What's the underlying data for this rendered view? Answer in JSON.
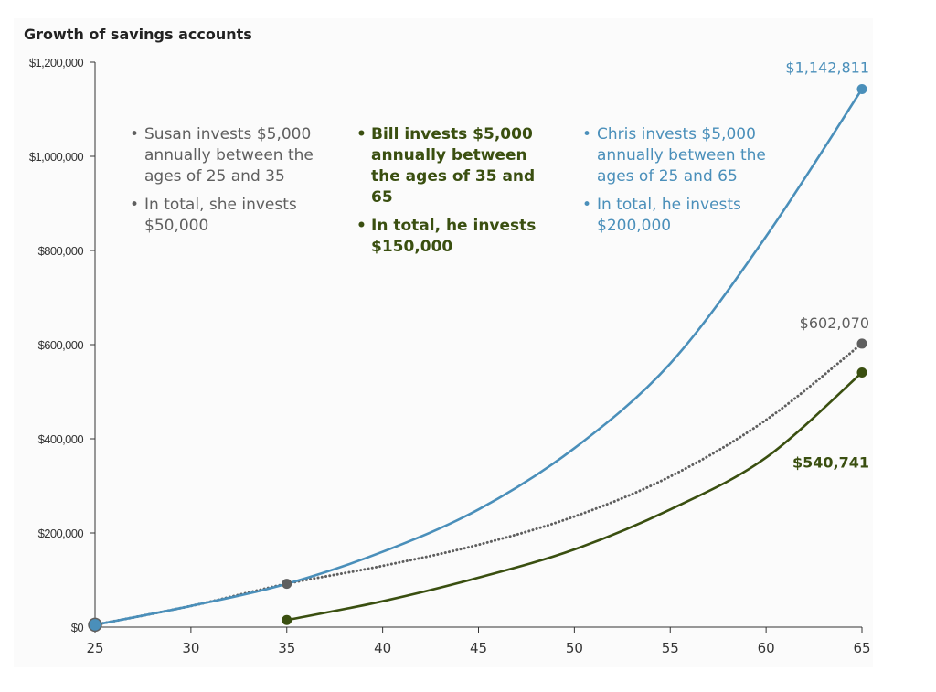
{
  "chart_data": {
    "type": "line",
    "title": "Growth of savings accounts",
    "xlabel": "",
    "ylabel": "",
    "xlim": [
      25,
      65
    ],
    "ylim": [
      0,
      1200000
    ],
    "x_ticks": [
      25,
      30,
      35,
      40,
      45,
      50,
      55,
      60,
      65
    ],
    "y_ticks": [
      {
        "value": 0,
        "label": "$0"
      },
      {
        "value": 200000,
        "label": "$200,000"
      },
      {
        "value": 400000,
        "label": "$400,000"
      },
      {
        "value": 600000,
        "label": "$600,000"
      },
      {
        "value": 800000,
        "label": "$800,000"
      },
      {
        "value": 1000000,
        "label": "$1,000,000"
      },
      {
        "value": 1200000,
        "label": "$1,200,000"
      }
    ],
    "grid": false,
    "legend": "none",
    "series": [
      {
        "name": "Chris",
        "color": "#4a8fba",
        "style": "solid",
        "x": [
          25,
          30,
          35,
          40,
          45,
          50,
          55,
          60,
          65
        ],
        "y": [
          5000,
          45000,
          92000,
          160000,
          250000,
          380000,
          560000,
          830000,
          1142811
        ],
        "end_label": "$1,142,811"
      },
      {
        "name": "Susan",
        "color": "#5f5f5f",
        "style": "dotted",
        "x": [
          25,
          30,
          35,
          40,
          45,
          50,
          55,
          60,
          65
        ],
        "y": [
          5000,
          45000,
          92000,
          130000,
          175000,
          235000,
          320000,
          440000,
          602070
        ],
        "end_label": "$602,070"
      },
      {
        "name": "Bill",
        "color": "#3a4f10",
        "style": "solid",
        "x": [
          35,
          40,
          45,
          50,
          55,
          60,
          65
        ],
        "y": [
          15000,
          55000,
          105000,
          165000,
          250000,
          360000,
          540741
        ],
        "end_label": "$540,741"
      }
    ],
    "annotations": [
      {
        "series": "Susan",
        "lines": [
          "Susan invests $5,000 annually between the ages of 25 and 35",
          "In total, she invests $50,000"
        ]
      },
      {
        "series": "Bill",
        "lines": [
          "Bill invests $5,000 annually between the ages of 35 and 65",
          "In total, he invests $150,000"
        ]
      },
      {
        "series": "Chris",
        "lines": [
          "Chris invests $5,000 annually between the ages of 25 and 65",
          "In total, he invests $200,000"
        ]
      }
    ]
  }
}
